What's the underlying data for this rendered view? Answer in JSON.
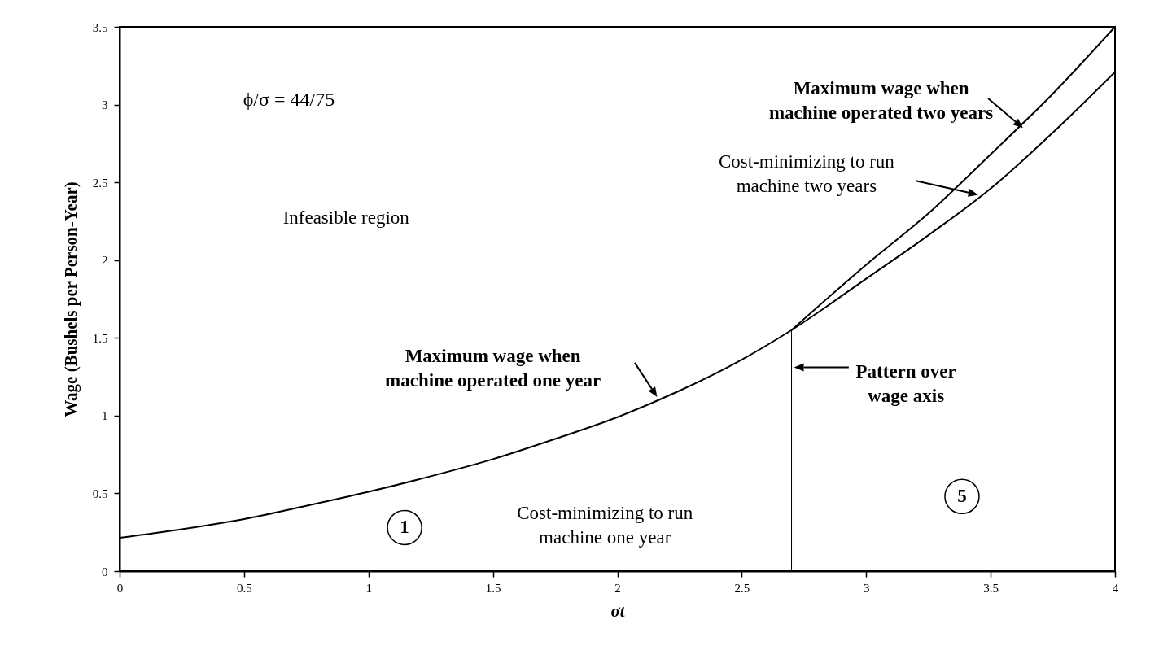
{
  "chart_data": {
    "type": "line",
    "xlabel": "σt",
    "ylabel": "Wage (Bushels per Person-Year)",
    "xlim": [
      0,
      4
    ],
    "ylim": [
      0,
      3.5
    ],
    "xticks": [
      0,
      0.5,
      1,
      1.5,
      2,
      2.5,
      3,
      3.5,
      4
    ],
    "yticks": [
      0,
      0.5,
      1,
      1.5,
      2,
      2.5,
      3,
      3.5
    ],
    "series": [
      {
        "color": "#000000",
        "x": [
          0,
          0.25,
          0.5,
          0.75,
          1,
          1.25,
          1.5,
          1.75,
          2,
          2.25,
          2.5,
          2.7,
          3,
          3.25,
          3.5,
          3.75,
          4
        ],
        "values": [
          0.215,
          0.27,
          0.335,
          0.42,
          0.51,
          0.61,
          0.72,
          0.85,
          0.99,
          1.16,
          1.36,
          1.55,
          1.88,
          2.16,
          2.46,
          2.82,
          3.21
        ]
      },
      {
        "color": "#000000",
        "x": [
          2.7,
          3,
          3.25,
          3.5,
          3.75,
          4
        ],
        "values": [
          1.55,
          1.97,
          2.3,
          2.68,
          3.07,
          3.5
        ]
      },
      {
        "color": "#000000",
        "x": [
          2.7,
          2.7
        ],
        "values": [
          0,
          1.55
        ]
      }
    ],
    "annotations": [
      "ϕ/σ = 44/75",
      "Infeasible region",
      {
        "text": "Maximum wage when machine operated two years",
        "x": 3.63,
        "y": 2.85
      },
      "Cost-minimizing to run machine two years",
      "Maximum wage when machine operated one year",
      "Pattern over wage axis",
      "Cost-minimizing to run machine one year",
      "1",
      "5"
    ]
  }
}
